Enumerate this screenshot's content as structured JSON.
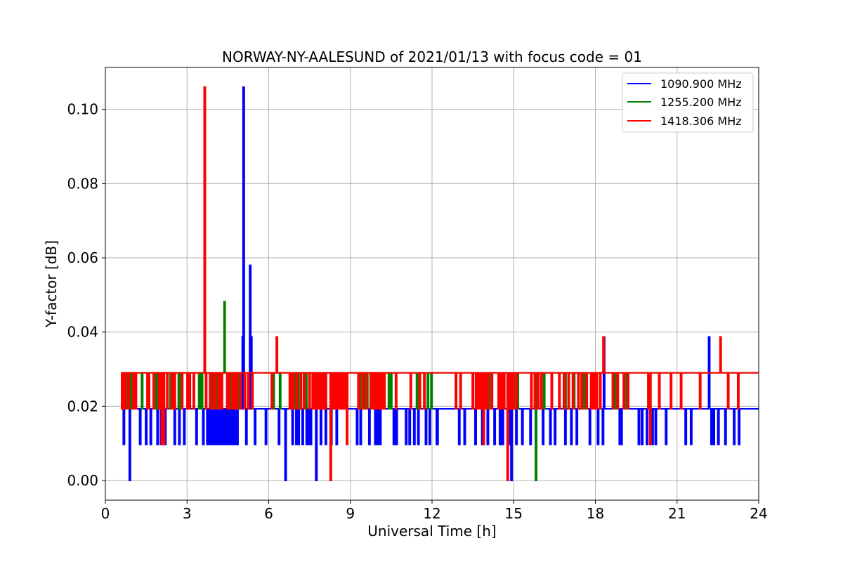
{
  "chart_data": {
    "type": "line",
    "title": "NORWAY-NY-AALESUND of 2021/01/13 with focus code = 01",
    "xlabel": "Universal Time [h]",
    "ylabel": "Y-factor [dB]",
    "xlim": [
      0,
      24
    ],
    "ylim": [
      -0.0053,
      0.1113
    ],
    "xticks": [
      0,
      3,
      6,
      9,
      12,
      15,
      18,
      21,
      24
    ],
    "xtick_labels": [
      "0",
      "3",
      "6",
      "9",
      "12",
      "15",
      "18",
      "21",
      "24"
    ],
    "yticks": [
      0.0,
      0.02,
      0.04,
      0.06,
      0.08,
      0.1
    ],
    "ytick_labels": [
      "0.00",
      "0.02",
      "0.04",
      "0.06",
      "0.08",
      "0.10"
    ],
    "grid": true,
    "legend_position": "top-right",
    "x_range": [
      0.6,
      24.0
    ],
    "series": [
      {
        "name": "1090.900 MHz",
        "color": "#0000ff",
        "baseline": 0.0193,
        "events": [
          [
            0.68,
            0.0097
          ],
          [
            0.9,
            0.0
          ],
          [
            1.28,
            0.0097
          ],
          [
            1.5,
            0.0097
          ],
          [
            1.67,
            0.0097
          ],
          [
            1.92,
            0.0097
          ],
          [
            2.05,
            0.0097
          ],
          [
            2.2,
            0.0097
          ],
          [
            2.55,
            0.0097
          ],
          [
            2.72,
            0.0097
          ],
          [
            2.9,
            0.0097
          ],
          [
            3.35,
            0.0097
          ],
          [
            3.6,
            0.0097
          ],
          [
            3.75,
            0.0097
          ],
          [
            3.82,
            0.0097
          ],
          [
            3.88,
            0.0097
          ],
          [
            3.93,
            0.0097
          ],
          [
            3.98,
            0.0097
          ],
          [
            4.03,
            0.0097
          ],
          [
            4.1,
            0.0097
          ],
          [
            4.16,
            0.0097
          ],
          [
            4.22,
            0.0097
          ],
          [
            4.27,
            0.0097
          ],
          [
            4.33,
            0.0097
          ],
          [
            4.4,
            0.0097
          ],
          [
            4.48,
            0.0097
          ],
          [
            4.55,
            0.0097
          ],
          [
            4.63,
            0.0097
          ],
          [
            4.7,
            0.0097
          ],
          [
            4.78,
            0.0097
          ],
          [
            4.85,
            0.0097
          ],
          [
            5.05,
            0.0387
          ],
          [
            5.08,
            0.106
          ],
          [
            5.18,
            0.0097
          ],
          [
            5.32,
            0.058
          ],
          [
            5.36,
            0.0387
          ],
          [
            5.5,
            0.0097
          ],
          [
            5.9,
            0.0097
          ],
          [
            6.38,
            0.0097
          ],
          [
            6.62,
            0.0
          ],
          [
            6.88,
            0.0097
          ],
          [
            7.02,
            0.0097
          ],
          [
            7.1,
            0.0097
          ],
          [
            7.25,
            0.0097
          ],
          [
            7.4,
            0.0097
          ],
          [
            7.48,
            0.0097
          ],
          [
            7.55,
            0.0097
          ],
          [
            7.75,
            0.0
          ],
          [
            7.92,
            0.0097
          ],
          [
            8.1,
            0.0097
          ],
          [
            8.3,
            0.0097
          ],
          [
            8.5,
            0.0097
          ],
          [
            9.25,
            0.0097
          ],
          [
            9.38,
            0.0097
          ],
          [
            9.7,
            0.0097
          ],
          [
            9.92,
            0.0097
          ],
          [
            10.02,
            0.0097
          ],
          [
            10.1,
            0.0097
          ],
          [
            10.6,
            0.0097
          ],
          [
            10.7,
            0.0097
          ],
          [
            11.05,
            0.0097
          ],
          [
            11.18,
            0.0097
          ],
          [
            11.35,
            0.0097
          ],
          [
            11.5,
            0.0097
          ],
          [
            11.78,
            0.0097
          ],
          [
            11.92,
            0.0097
          ],
          [
            12.18,
            0.0097
          ],
          [
            12.2,
            0.0097
          ],
          [
            13.0,
            0.0097
          ],
          [
            13.2,
            0.0097
          ],
          [
            13.6,
            0.0097
          ],
          [
            13.85,
            0.0097
          ],
          [
            14.05,
            0.0097
          ],
          [
            14.3,
            0.0097
          ],
          [
            14.5,
            0.0097
          ],
          [
            14.6,
            0.0097
          ],
          [
            14.88,
            0.0097
          ],
          [
            14.92,
            0.0
          ],
          [
            15.1,
            0.0097
          ],
          [
            15.32,
            0.0097
          ],
          [
            15.62,
            0.0097
          ],
          [
            15.82,
            0.0097
          ],
          [
            16.08,
            0.0097
          ],
          [
            16.35,
            0.0097
          ],
          [
            16.52,
            0.0097
          ],
          [
            16.9,
            0.0097
          ],
          [
            17.12,
            0.0097
          ],
          [
            17.32,
            0.0097
          ],
          [
            17.8,
            0.0097
          ],
          [
            18.1,
            0.0097
          ],
          [
            18.28,
            0.0097
          ],
          [
            18.32,
            0.0387
          ],
          [
            18.9,
            0.0097
          ],
          [
            18.96,
            0.0097
          ],
          [
            19.6,
            0.0097
          ],
          [
            19.72,
            0.0097
          ],
          [
            19.9,
            0.0097
          ],
          [
            20.1,
            0.0097
          ],
          [
            20.22,
            0.0097
          ],
          [
            20.6,
            0.0097
          ],
          [
            21.32,
            0.0097
          ],
          [
            21.52,
            0.0097
          ],
          [
            22.18,
            0.0387
          ],
          [
            22.27,
            0.0097
          ],
          [
            22.35,
            0.0097
          ],
          [
            22.52,
            0.0097
          ],
          [
            22.78,
            0.0097
          ],
          [
            23.1,
            0.0097
          ],
          [
            23.28,
            0.0097
          ]
        ]
      },
      {
        "name": "1255.200 MHz",
        "color": "#008000",
        "baseline": 0.029,
        "events": [
          [
            0.78,
            0.0193
          ],
          [
            0.92,
            0.0193
          ],
          [
            1.08,
            0.0193
          ],
          [
            1.35,
            0.0193
          ],
          [
            1.88,
            0.0193
          ],
          [
            1.95,
            0.0193
          ],
          [
            2.4,
            0.0193
          ],
          [
            2.7,
            0.0193
          ],
          [
            2.78,
            0.0193
          ],
          [
            3.05,
            0.0193
          ],
          [
            3.45,
            0.0193
          ],
          [
            3.55,
            0.0193
          ],
          [
            3.9,
            0.0193
          ],
          [
            4.1,
            0.0193
          ],
          [
            4.38,
            0.0482
          ],
          [
            4.6,
            0.0193
          ],
          [
            4.9,
            0.0193
          ],
          [
            6.18,
            0.0193
          ],
          [
            6.42,
            0.0193
          ],
          [
            6.95,
            0.0193
          ],
          [
            7.08,
            0.0193
          ],
          [
            7.38,
            0.0193
          ],
          [
            8.02,
            0.0193
          ],
          [
            8.62,
            0.0193
          ],
          [
            9.35,
            0.0193
          ],
          [
            9.52,
            0.0193
          ],
          [
            9.62,
            0.0193
          ],
          [
            10.42,
            0.0193
          ],
          [
            10.5,
            0.0193
          ],
          [
            11.45,
            0.0193
          ],
          [
            11.85,
            0.0193
          ],
          [
            11.98,
            0.0193
          ],
          [
            13.82,
            0.0193
          ],
          [
            14.1,
            0.0193
          ],
          [
            15.0,
            0.0193
          ],
          [
            15.15,
            0.0193
          ],
          [
            15.82,
            0.0
          ],
          [
            16.12,
            0.0193
          ],
          [
            16.9,
            0.0193
          ],
          [
            17.22,
            0.0193
          ],
          [
            17.6,
            0.0193
          ],
          [
            18.18,
            0.0193
          ],
          [
            18.65,
            0.0193
          ],
          [
            18.75,
            0.0193
          ],
          [
            19.15,
            0.0193
          ]
        ]
      },
      {
        "name": "1418.306 MHz",
        "color": "#ff0000",
        "baseline": 0.029,
        "events": [
          [
            0.62,
            0.0193
          ],
          [
            0.72,
            0.0193
          ],
          [
            0.85,
            0.0193
          ],
          [
            1.02,
            0.0193
          ],
          [
            1.12,
            0.0193
          ],
          [
            1.55,
            0.0193
          ],
          [
            1.6,
            0.0193
          ],
          [
            1.78,
            0.0193
          ],
          [
            1.98,
            0.0193
          ],
          [
            2.08,
            0.0097
          ],
          [
            2.15,
            0.0097
          ],
          [
            2.28,
            0.0193
          ],
          [
            2.45,
            0.0193
          ],
          [
            2.55,
            0.0193
          ],
          [
            2.82,
            0.0193
          ],
          [
            3.02,
            0.0193
          ],
          [
            3.1,
            0.0193
          ],
          [
            3.25,
            0.0193
          ],
          [
            3.65,
            0.106
          ],
          [
            3.7,
            0.0193
          ],
          [
            3.85,
            0.0193
          ],
          [
            3.98,
            0.0193
          ],
          [
            4.05,
            0.0193
          ],
          [
            4.18,
            0.0193
          ],
          [
            4.28,
            0.0193
          ],
          [
            4.48,
            0.0193
          ],
          [
            4.55,
            0.0193
          ],
          [
            4.68,
            0.0193
          ],
          [
            4.75,
            0.0193
          ],
          [
            4.82,
            0.0193
          ],
          [
            4.95,
            0.0193
          ],
          [
            5.12,
            0.0193
          ],
          [
            5.25,
            0.0193
          ],
          [
            5.4,
            0.0193
          ],
          [
            6.12,
            0.0193
          ],
          [
            6.3,
            0.0387
          ],
          [
            6.78,
            0.0193
          ],
          [
            6.82,
            0.0193
          ],
          [
            6.88,
            0.0193
          ],
          [
            7.02,
            0.0193
          ],
          [
            7.18,
            0.0193
          ],
          [
            7.3,
            0.0193
          ],
          [
            7.5,
            0.0193
          ],
          [
            7.62,
            0.0193
          ],
          [
            7.72,
            0.0193
          ],
          [
            7.82,
            0.0193
          ],
          [
            7.92,
            0.0193
          ],
          [
            8.0,
            0.0193
          ],
          [
            8.1,
            0.0193
          ],
          [
            8.28,
            0.0
          ],
          [
            8.38,
            0.0193
          ],
          [
            8.48,
            0.0193
          ],
          [
            8.58,
            0.0193
          ],
          [
            8.68,
            0.0193
          ],
          [
            8.78,
            0.0193
          ],
          [
            8.88,
            0.0097
          ],
          [
            9.3,
            0.0193
          ],
          [
            9.45,
            0.0193
          ],
          [
            9.58,
            0.0193
          ],
          [
            9.75,
            0.0193
          ],
          [
            9.85,
            0.0193
          ],
          [
            9.95,
            0.0193
          ],
          [
            10.05,
            0.0193
          ],
          [
            10.15,
            0.0193
          ],
          [
            10.25,
            0.0193
          ],
          [
            10.68,
            0.0193
          ],
          [
            11.22,
            0.0193
          ],
          [
            11.55,
            0.0193
          ],
          [
            11.72,
            0.0193
          ],
          [
            12.88,
            0.0193
          ],
          [
            13.05,
            0.0193
          ],
          [
            13.5,
            0.0193
          ],
          [
            13.62,
            0.0193
          ],
          [
            13.72,
            0.0193
          ],
          [
            13.8,
            0.0193
          ],
          [
            13.9,
            0.0097
          ],
          [
            13.95,
            0.0193
          ],
          [
            14.05,
            0.0193
          ],
          [
            14.2,
            0.0193
          ],
          [
            14.45,
            0.0193
          ],
          [
            14.55,
            0.0193
          ],
          [
            14.65,
            0.0193
          ],
          [
            14.78,
            0.0
          ],
          [
            14.88,
            0.0193
          ],
          [
            14.98,
            0.0193
          ],
          [
            15.1,
            0.0193
          ],
          [
            15.65,
            0.0193
          ],
          [
            15.78,
            0.0193
          ],
          [
            15.9,
            0.0193
          ],
          [
            16.02,
            0.0193
          ],
          [
            16.4,
            0.0193
          ],
          [
            16.68,
            0.0193
          ],
          [
            16.85,
            0.0193
          ],
          [
            17.02,
            0.0193
          ],
          [
            17.18,
            0.0193
          ],
          [
            17.38,
            0.0193
          ],
          [
            17.5,
            0.0193
          ],
          [
            17.68,
            0.0193
          ],
          [
            17.85,
            0.0193
          ],
          [
            17.95,
            0.0193
          ],
          [
            18.05,
            0.0193
          ],
          [
            18.18,
            0.0193
          ],
          [
            18.3,
            0.0387
          ],
          [
            18.65,
            0.0193
          ],
          [
            18.82,
            0.0193
          ],
          [
            19.05,
            0.0193
          ],
          [
            19.2,
            0.0193
          ],
          [
            19.95,
            0.0193
          ],
          [
            20.02,
            0.0097
          ],
          [
            20.35,
            0.0193
          ],
          [
            20.78,
            0.0193
          ],
          [
            21.15,
            0.0193
          ],
          [
            21.85,
            0.0193
          ],
          [
            22.6,
            0.0387
          ],
          [
            22.88,
            0.0193
          ],
          [
            23.25,
            0.0193
          ]
        ]
      }
    ]
  }
}
